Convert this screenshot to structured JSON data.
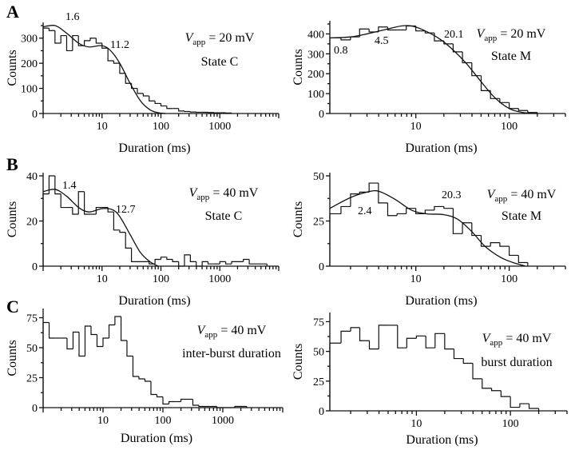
{
  "figure": {
    "panels": [
      {
        "letter": "A"
      },
      {
        "letter": "B"
      },
      {
        "letter": "C"
      }
    ]
  },
  "chart_data": [
    {
      "id": "A-left",
      "type": "bar",
      "subtype": "log-binned histogram with fit",
      "panel": "A",
      "xlabel": "Duration (ms)",
      "ylabel": "Counts",
      "xscale": "log",
      "xlim": [
        1,
        10000
      ],
      "ylim": [
        0,
        350
      ],
      "xticks": [
        "10",
        "100",
        "1000"
      ],
      "yticks": [
        "0",
        "100",
        "200",
        "300"
      ],
      "condition_label": {
        "V": "V",
        "sub": "app",
        "rest": " = 20 mV"
      },
      "state_label": "State C",
      "annotations": [
        "1.6",
        "11.2"
      ],
      "bins": {
        "edges": [
          1,
          1.26,
          1.59,
          2.0,
          2.51,
          3.16,
          3.98,
          5.01,
          6.31,
          7.94,
          10,
          12.6,
          15.8,
          20,
          25.1,
          31.6,
          39.8,
          50.1,
          63.1,
          79.4,
          100,
          126,
          158,
          200,
          251,
          316,
          398,
          501,
          631,
          794,
          1000,
          1259,
          1585
        ],
        "counts": [
          340,
          330,
          280,
          310,
          250,
          310,
          270,
          290,
          300,
          280,
          260,
          210,
          200,
          160,
          120,
          100,
          80,
          70,
          50,
          40,
          30,
          20,
          20,
          10,
          8,
          6,
          5,
          5,
          4,
          3,
          3,
          2
        ]
      },
      "fit": {
        "peaks_ms": [
          1.6,
          11.2
        ],
        "values": [
          [
            1,
            345
          ],
          [
            1.6,
            350
          ],
          [
            2.5,
            320
          ],
          [
            4,
            280
          ],
          [
            6,
            265
          ],
          [
            10,
            270
          ],
          [
            14,
            250
          ],
          [
            20,
            200
          ],
          [
            30,
            120
          ],
          [
            45,
            50
          ],
          [
            65,
            15
          ],
          [
            90,
            3
          ],
          [
            120,
            0
          ]
        ]
      }
    },
    {
      "id": "A-right",
      "type": "bar",
      "subtype": "log-binned histogram with fit",
      "panel": "A",
      "xlabel": "Duration (ms)",
      "ylabel": "Counts",
      "xscale": "log",
      "xlim": [
        1.2,
        400
      ],
      "ylim": [
        0,
        450
      ],
      "xticks": [
        "10",
        "100"
      ],
      "yticks": [
        "0",
        "100",
        "200",
        "300",
        "400"
      ],
      "condition_label": {
        "V": "V",
        "sub": "app",
        "rest": " = 20 mV"
      },
      "state_label": "State M",
      "annotations": [
        "0.8",
        "4.5",
        "20.1"
      ],
      "bins": {
        "edges": [
          1.2,
          1.58,
          2.0,
          2.5,
          3.16,
          3.98,
          5.0,
          6.3,
          7.9,
          10,
          12.6,
          15.8,
          20,
          25.1,
          31.6,
          39.8,
          50.1,
          63.1,
          79.4,
          100,
          126,
          158,
          200
        ],
        "counts": [
          380,
          370,
          385,
          425,
          410,
          435,
          420,
          420,
          440,
          415,
          405,
          365,
          350,
          310,
          255,
          190,
          115,
          75,
          55,
          25,
          15,
          5
        ]
      },
      "fit": {
        "peaks_ms": [
          0.8,
          4.5,
          20.1
        ],
        "values": [
          [
            1.2,
            380
          ],
          [
            2,
            385
          ],
          [
            3,
            400
          ],
          [
            5,
            425
          ],
          [
            7,
            440
          ],
          [
            9,
            440
          ],
          [
            12,
            420
          ],
          [
            18,
            375
          ],
          [
            25,
            320
          ],
          [
            35,
            250
          ],
          [
            50,
            160
          ],
          [
            70,
            80
          ],
          [
            100,
            25
          ],
          [
            140,
            5
          ],
          [
            200,
            0
          ]
        ]
      }
    },
    {
      "id": "B-left",
      "type": "bar",
      "subtype": "log-binned histogram with fit",
      "panel": "B",
      "xlabel": "Duration (ms)",
      "ylabel": "Counts",
      "xscale": "log",
      "xlim": [
        1,
        10000
      ],
      "ylim": [
        0,
        40
      ],
      "xticks": [
        "10",
        "100",
        "1000"
      ],
      "yticks": [
        "0",
        "20",
        "40"
      ],
      "condition_label": {
        "V": "V",
        "sub": "app",
        "rest": " = 40 mV"
      },
      "state_label": "State C",
      "annotations": [
        "1.4",
        "12.7"
      ],
      "bins": {
        "edges": [
          1,
          1.26,
          1.59,
          2.0,
          2.51,
          3.16,
          3.98,
          5.01,
          6.31,
          7.94,
          10,
          12.6,
          15.8,
          20,
          25.1,
          31.6,
          63.1,
          79.4,
          100,
          126,
          158,
          200,
          251,
          316,
          398,
          501,
          631,
          794,
          1000,
          1259,
          1585,
          2512,
          3162,
          6310
        ],
        "counts": [
          32,
          40,
          32,
          26,
          26,
          23,
          33,
          23,
          23,
          26,
          26,
          24,
          16,
          15,
          8,
          2,
          1,
          3,
          4,
          3,
          2,
          0,
          5,
          2,
          0,
          2,
          1,
          1,
          2,
          1,
          2,
          3,
          1
        ]
      },
      "fit": {
        "peaks_ms": [
          1.4,
          12.7
        ],
        "values": [
          [
            1,
            33
          ],
          [
            1.6,
            34
          ],
          [
            2.5,
            31
          ],
          [
            4,
            26
          ],
          [
            6,
            24
          ],
          [
            10,
            25.5
          ],
          [
            15,
            25
          ],
          [
            20,
            22
          ],
          [
            30,
            14
          ],
          [
            45,
            6
          ],
          [
            65,
            2
          ],
          [
            90,
            0
          ]
        ]
      }
    },
    {
      "id": "B-right",
      "type": "bar",
      "subtype": "log-binned histogram with fit",
      "panel": "B",
      "xlabel": "Duration (ms)",
      "ylabel": "Counts",
      "xscale": "log",
      "xlim": [
        1.2,
        400
      ],
      "ylim": [
        0,
        50
      ],
      "xticks": [
        "10",
        "100"
      ],
      "yticks": [
        "0",
        "25",
        "50"
      ],
      "condition_label": {
        "V": "V",
        "sub": "app",
        "rest": " = 40 mV"
      },
      "state_label": "State M",
      "annotations": [
        "2.4",
        "20.3"
      ],
      "bins": {
        "edges": [
          1.2,
          1.58,
          2.0,
          2.5,
          3.16,
          3.98,
          5.0,
          6.3,
          7.9,
          10,
          12.6,
          15.8,
          20,
          25.1,
          31.6,
          39.8,
          50.1,
          63.1,
          79.4,
          100,
          126,
          158
        ],
        "counts": [
          29,
          33,
          40,
          41,
          46,
          35,
          28,
          29,
          32,
          29,
          31,
          33,
          32,
          18,
          24,
          17,
          11,
          13,
          11,
          6,
          2
        ]
      },
      "fit": {
        "peaks_ms": [
          2.4,
          20.3
        ],
        "values": [
          [
            1.2,
            32
          ],
          [
            2,
            38
          ],
          [
            3,
            41
          ],
          [
            4,
            41.5
          ],
          [
            6,
            37
          ],
          [
            9,
            31
          ],
          [
            13,
            29
          ],
          [
            20,
            28.5
          ],
          [
            28,
            26
          ],
          [
            40,
            19
          ],
          [
            55,
            11
          ],
          [
            80,
            5
          ],
          [
            110,
            2
          ],
          [
            150,
            0
          ]
        ]
      }
    },
    {
      "id": "C-left",
      "type": "bar",
      "subtype": "log-binned histogram",
      "panel": "C",
      "xlabel": "Duration (ms)",
      "ylabel": "Counts",
      "xscale": "log",
      "xlim": [
        1,
        10000
      ],
      "ylim": [
        0,
        80
      ],
      "xticks": [
        "10",
        "100",
        "1000"
      ],
      "yticks": [
        "0",
        "25",
        "50",
        "75"
      ],
      "condition_label": {
        "V": "V",
        "sub": "app",
        "rest": " = 40 mV"
      },
      "state_label": "inter-burst duration",
      "annotations": [],
      "bins": {
        "edges": [
          1,
          1.26,
          1.59,
          2.0,
          2.51,
          3.16,
          3.98,
          5.01,
          6.31,
          7.94,
          10,
          12.6,
          15.8,
          20,
          25.1,
          31.6,
          39.8,
          50.1,
          63.1,
          79.4,
          100,
          126,
          158,
          200,
          251,
          316,
          398,
          501,
          631,
          794,
          1000,
          1585,
          2512
        ],
        "counts": [
          71,
          58,
          58,
          58,
          49,
          63,
          43,
          68,
          61,
          51,
          58,
          69,
          76,
          56,
          43,
          26,
          24,
          22,
          11,
          9,
          3,
          5,
          5,
          7,
          7,
          2,
          1,
          1,
          1,
          0,
          0,
          1
        ]
      }
    },
    {
      "id": "C-right",
      "type": "bar",
      "subtype": "log-binned histogram",
      "panel": "C",
      "xlabel": "Duration (ms)",
      "ylabel": "Counts",
      "xscale": "log",
      "xlim": [
        1.2,
        400
      ],
      "ylim": [
        0,
        80
      ],
      "xticks": [
        "10",
        "100"
      ],
      "yticks": [
        "0",
        "25",
        "50",
        "75"
      ],
      "condition_label": {
        "V": "V",
        "sub": "app",
        "rest": " = 40 mV"
      },
      "state_label": "burst duration",
      "annotations": [],
      "bins": {
        "edges": [
          1.2,
          1.58,
          2.0,
          2.5,
          3.16,
          3.98,
          5.0,
          6.3,
          7.9,
          10,
          12.6,
          15.8,
          20,
          25.1,
          31.6,
          39.8,
          50.1,
          63.1,
          79.4,
          100,
          126,
          158,
          200
        ],
        "counts": [
          57,
          67,
          70,
          59,
          52,
          72,
          72,
          53,
          61,
          63,
          53,
          65,
          52,
          44,
          40,
          27,
          19,
          17,
          12,
          3,
          6,
          2
        ]
      }
    }
  ]
}
